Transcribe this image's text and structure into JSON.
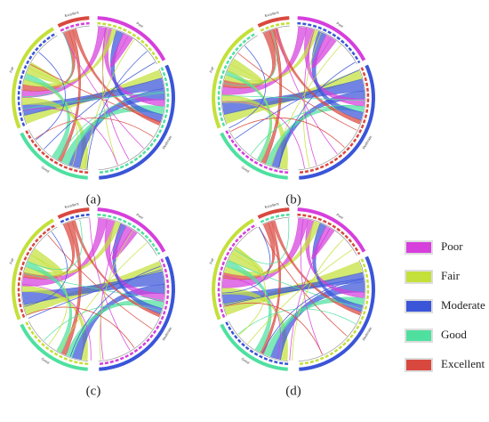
{
  "panels": [
    {
      "label": "(a)"
    },
    {
      "label": "(b)"
    },
    {
      "label": "(c)"
    },
    {
      "label": "(d)"
    }
  ],
  "legend": [
    {
      "label": "Poor",
      "color": "#d63fdc"
    },
    {
      "label": "Fair",
      "color": "#c4e03a"
    },
    {
      "label": "Moderate",
      "color": "#3a55d8"
    },
    {
      "label": "Good",
      "color": "#4fe0a0"
    },
    {
      "label": "Excellent",
      "color": "#d9483f"
    }
  ]
}
